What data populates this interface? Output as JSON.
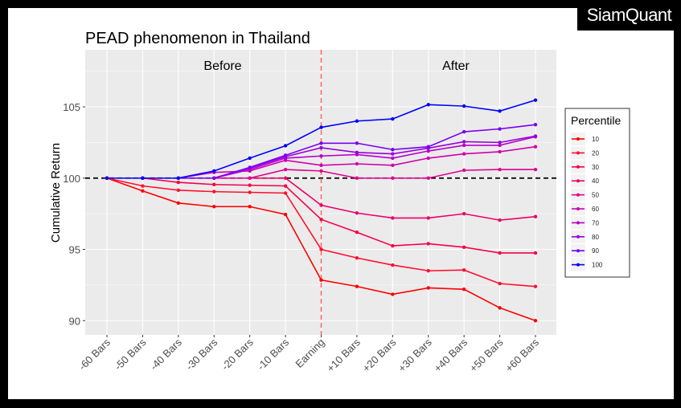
{
  "logo": "SiamQuant",
  "chart_data": {
    "type": "line",
    "title": "PEAD phenomenon in Thailand",
    "xlabel": "",
    "ylabel": "Cumulative Return",
    "categories": [
      "-60 Bars",
      "-50 Bars",
      "-40 Bars",
      "-30 Bars",
      "-20 Bars",
      "-10 Bars",
      "Earning",
      "+10 Bars",
      "+20 Bars",
      "+30 Bars",
      "+40 Bars",
      "+50 Bars",
      "+60 Bars"
    ],
    "yticks": [
      90,
      95,
      100,
      105
    ],
    "ylim": [
      89,
      109
    ],
    "grid": true,
    "reference_line": {
      "y": 100,
      "style": "dashed",
      "color": "#000000"
    },
    "event_line": {
      "x": "Earning",
      "style": "dashed",
      "color": "#FF6666"
    },
    "facet_labels": {
      "before": "Before",
      "after": "After"
    },
    "legend": {
      "title": "Percentile",
      "placement": "right"
    },
    "series": [
      {
        "name": "10",
        "color": "#FF0000",
        "values": [
          100,
          99.1,
          98.25,
          98.0,
          98.0,
          97.45,
          92.85,
          92.4,
          91.85,
          92.3,
          92.2,
          90.9,
          90.0
        ]
      },
      {
        "name": "20",
        "color": "#FF1030",
        "values": [
          100,
          99.45,
          99.15,
          99.05,
          99.0,
          98.95,
          95.0,
          94.4,
          93.9,
          93.5,
          93.55,
          92.6,
          92.4
        ]
      },
      {
        "name": "30",
        "color": "#F80048",
        "values": [
          100,
          100,
          99.7,
          99.55,
          99.5,
          99.45,
          97.1,
          96.2,
          95.25,
          95.4,
          95.15,
          94.75,
          94.75
        ]
      },
      {
        "name": "40",
        "color": "#EE0068",
        "values": [
          100,
          100,
          100,
          100,
          100,
          100,
          98.1,
          97.55,
          97.2,
          97.2,
          97.5,
          97.05,
          97.3
        ]
      },
      {
        "name": "50",
        "color": "#E00090",
        "values": [
          100,
          100,
          100,
          100,
          100,
          100.6,
          100.5,
          100,
          100,
          100,
          100.55,
          100.6,
          100.6
        ]
      },
      {
        "name": "60",
        "color": "#D000B0",
        "values": [
          100,
          100,
          100,
          100.4,
          100.5,
          101.25,
          100.9,
          101.0,
          100.9,
          101.4,
          101.7,
          101.85,
          102.2
        ]
      },
      {
        "name": "70",
        "color": "#B800CC",
        "values": [
          100,
          100,
          100,
          100,
          100.6,
          101.4,
          101.55,
          101.65,
          101.4,
          101.9,
          102.3,
          102.3,
          102.9
        ]
      },
      {
        "name": "80",
        "color": "#9A00DD",
        "values": [
          100,
          100,
          100,
          100,
          100.7,
          101.5,
          102.13,
          101.8,
          101.7,
          102.1,
          102.55,
          102.5,
          102.95
        ]
      },
      {
        "name": "90",
        "color": "#7800F0",
        "values": [
          100,
          100,
          100,
          100,
          100.75,
          101.6,
          102.45,
          102.45,
          102.0,
          102.2,
          103.25,
          103.45,
          103.75
        ]
      },
      {
        "name": "100",
        "color": "#0000FF",
        "values": [
          100,
          100,
          100,
          100.5,
          101.4,
          102.27,
          103.56,
          104.0,
          104.15,
          105.15,
          105.05,
          104.7,
          105.47
        ]
      }
    ]
  }
}
